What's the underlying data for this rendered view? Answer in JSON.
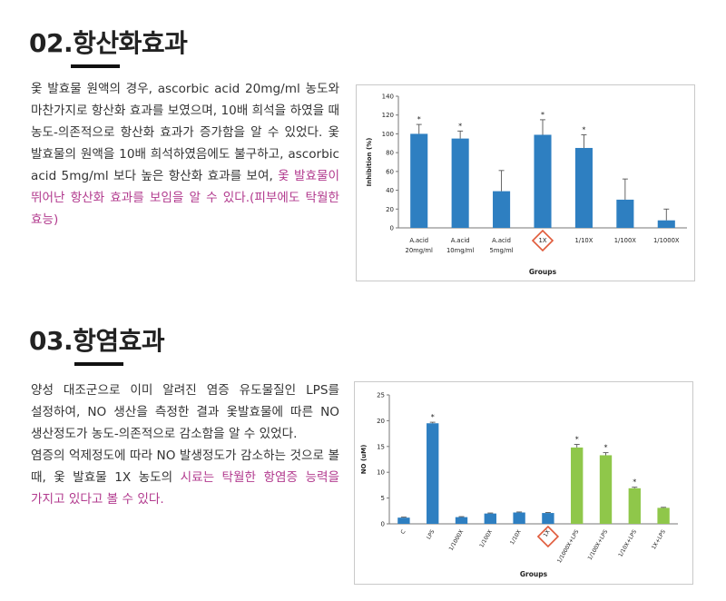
{
  "sections": [
    {
      "title": "02.항산화효과",
      "paragraph_plain": "옻 발효물 원액의 경우, ascorbic acid 20mg/ml 농도와 마찬가지로 항산화 효과를 보였으며, 10배 희석을 하였을 때 농도-의존적으로 항산화 효과가 증가함을 알 수 있었다. 옻 발효물의 원액을 10배 희석하였음에도 불구하고, ascorbic acid 5mg/ml 보다 높은 항산화 효과를 보여, ",
      "paragraph_highlight": "옻 발효물이 뛰어난 항산화 효과를 보임을 알 수 있다.(피부에도 탁월한 효능)"
    },
    {
      "title": "03.항염효과",
      "paragraph_plain": "양성 대조군으로 이미 알려진 염증 유도물질인 LPS를 설정하여, NO 생산을 측정한 결과 옻발효물에 따른 NO 생산정도가 농도-의존적으로 감소함을 알 수 있었다.",
      "paragraph_plain2": "염증의 억제정도에 따라 NO 발생정도가 감소하는 것으로 볼 때, 옻 발효물 1X 농도의 ",
      "paragraph_highlight": "시료는 탁월한 항염증 능력을 가지고 있다고 볼 수 있다."
    }
  ],
  "chart_data": [
    {
      "type": "bar",
      "categories": [
        "A.acid\n20mg/ml",
        "A.acid\n10mg/ml",
        "A.acid\n5mg/ml",
        "1X",
        "1/10X",
        "1/100X",
        "1/1000X"
      ],
      "values": [
        100,
        95,
        39,
        99,
        85,
        30,
        8
      ],
      "errors": [
        10,
        8,
        22,
        16,
        14,
        22,
        12
      ],
      "significance": [
        "*",
        "*",
        "",
        "*",
        "*",
        "",
        ""
      ],
      "highlighted_category": "1X",
      "xlabel": "Groups",
      "ylabel": "Inhibition (%)",
      "ylim": [
        0,
        140
      ],
      "yticks": [
        0,
        20,
        40,
        60,
        80,
        100,
        120,
        140
      ],
      "bar_color": "#2e7fc1",
      "highlight_color": "#e05a3a"
    },
    {
      "type": "bar",
      "categories": [
        "C",
        "LPS",
        "1/1000X",
        "1/100X",
        "1/10X",
        "1X",
        "1/1000X+LPS",
        "1/100X+LPS",
        "1/10X+LPS",
        "1X+LPS"
      ],
      "values": [
        1.2,
        19.5,
        1.3,
        2.0,
        2.2,
        2.1,
        14.8,
        13.3,
        6.9,
        3.1
      ],
      "errors": [
        0.1,
        0.2,
        0.1,
        0.1,
        0.1,
        0.1,
        0.6,
        0.5,
        0.2,
        0.1
      ],
      "significance": [
        "",
        "*",
        "",
        "",
        "",
        "",
        "*",
        "*",
        "*",
        ""
      ],
      "bar_colors": [
        "#2e7fc1",
        "#2e7fc1",
        "#2e7fc1",
        "#2e7fc1",
        "#2e7fc1",
        "#2e7fc1",
        "#8fc74a",
        "#8fc74a",
        "#8fc74a",
        "#8fc74a"
      ],
      "highlighted_category": "1X",
      "xlabel": "Groups",
      "ylabel": "NO (uM)",
      "ylim": [
        0,
        25
      ],
      "yticks": [
        0,
        5,
        10,
        15,
        20,
        25
      ],
      "highlight_color": "#e05a3a"
    }
  ]
}
